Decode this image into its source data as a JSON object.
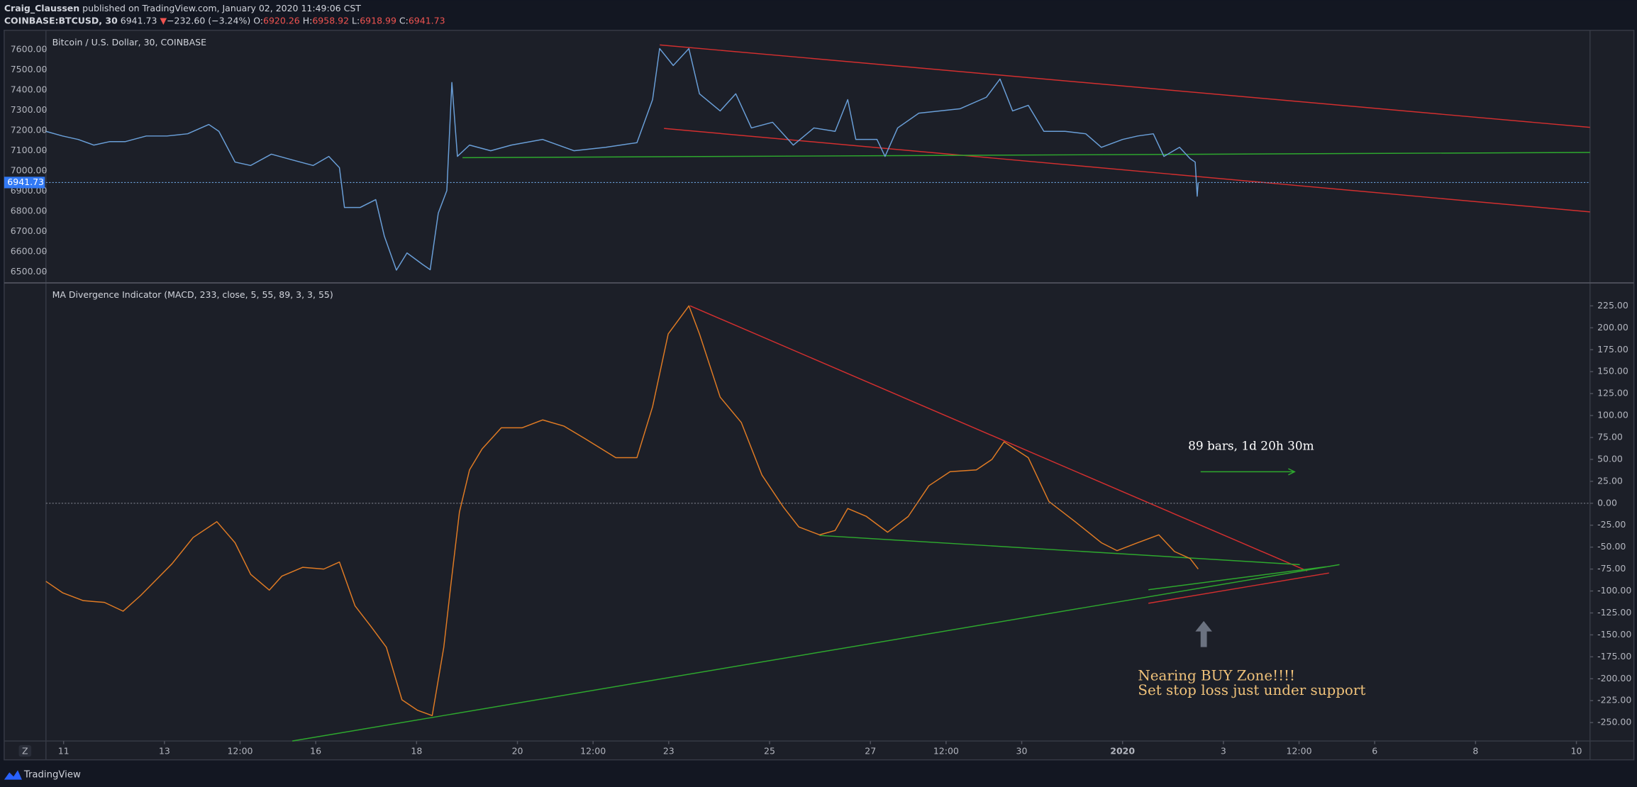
{
  "header": {
    "author": "Craig_Claussen",
    "published": "published on TradingView.com, January 02, 2020 11:49:06 CST",
    "symbol": "COINBASE:BTCUSD, 30",
    "last": "6941.73",
    "arrow": "▼",
    "change": "−232.60 (−3.24%)",
    "open_label": "O:",
    "open": "6920.26",
    "high_label": "H:",
    "high": "6958.92",
    "low_label": "L:",
    "low": "6918.99",
    "close_label": "C:",
    "close": "6941.73"
  },
  "chart_data": [
    {
      "type": "line",
      "title": "Bitcoin / U.S. Dollar, 30, COINBASE",
      "color": "#6a9fd8",
      "x": [
        10.65,
        10.98,
        11.29,
        11.6,
        11.91,
        12.22,
        12.64,
        13.05,
        13.46,
        13.88,
        14.08,
        14.4,
        14.71,
        15.12,
        15.53,
        15.95,
        16.26,
        16.47,
        16.57,
        16.88,
        17.19,
        17.36,
        17.6,
        17.81,
        18.12,
        18.27,
        18.43,
        18.6,
        18.7,
        18.81,
        19.05,
        19.47,
        19.88,
        20.5,
        21.12,
        21.75,
        22.37,
        22.68,
        22.82,
        23.09,
        23.4,
        23.61,
        24.02,
        24.33,
        24.64,
        25.06,
        25.47,
        25.88,
        26.3,
        26.55,
        26.71,
        27.13,
        27.29,
        27.54,
        27.96,
        28.37,
        28.78,
        29.3,
        29.57,
        29.82,
        30.13,
        30.44,
        30.86,
        31.27,
        31.58,
        32.0,
        32.3,
        32.61,
        32.82,
        33.13,
        33.34,
        33.44,
        33.48,
        33.5
      ],
      "values": [
        7195,
        7172,
        7155,
        7127,
        7144,
        7144,
        7172,
        7172,
        7183,
        7229,
        7195,
        7043,
        7026,
        7082,
        7054,
        7026,
        7071,
        7015,
        6818,
        6818,
        6857,
        6677,
        6508,
        6593,
        6536,
        6510,
        6790,
        6902,
        7437,
        7071,
        7127,
        7099,
        7127,
        7155,
        7099,
        7116,
        7139,
        7352,
        7605,
        7521,
        7605,
        7381,
        7296,
        7381,
        7212,
        7240,
        7127,
        7212,
        7195,
        7352,
        7155,
        7155,
        7071,
        7212,
        7285,
        7296,
        7307,
        7364,
        7454,
        7296,
        7324,
        7195,
        7195,
        7183,
        7116,
        7155,
        7172,
        7183,
        7071,
        7116,
        7060,
        7043,
        6874,
        6941.73
      ],
      "last_price": 6941.73,
      "last_price_label": "6941.73",
      "xlim": [
        10.65,
        41.27
      ],
      "ylim": [
        6450,
        7690
      ],
      "yticks": [
        {
          "value": 6500,
          "label": "6500.00"
        },
        {
          "value": 6600,
          "label": "6600.00"
        },
        {
          "value": 6700,
          "label": "6700.00"
        },
        {
          "value": 6800,
          "label": "6800.00"
        },
        {
          "value": 6900,
          "label": "6900.00"
        },
        {
          "value": 7000,
          "label": "7000.00"
        },
        {
          "value": 7100,
          "label": "7100.00"
        },
        {
          "value": 7200,
          "label": "7200.00"
        },
        {
          "value": 7300,
          "label": "7300.00"
        },
        {
          "value": 7400,
          "label": "7400.00"
        },
        {
          "value": 7500,
          "label": "7500.00"
        },
        {
          "value": 7600,
          "label": "7600.00"
        }
      ]
    },
    {
      "type": "line",
      "title": "MA Divergence Indicator (MACD, 233, close, 5, 55, 89, 3, 3, 55)",
      "color": "#e07b24",
      "x": [
        10.65,
        10.98,
        11.39,
        11.81,
        12.18,
        12.53,
        12.84,
        13.15,
        13.57,
        14.04,
        14.4,
        14.71,
        15.08,
        15.33,
        15.74,
        16.16,
        16.47,
        16.78,
        17.09,
        17.4,
        17.71,
        18.02,
        18.31,
        18.54,
        18.68,
        18.85,
        19.05,
        19.3,
        19.68,
        20.09,
        20.5,
        20.92,
        21.33,
        21.95,
        22.37,
        22.68,
        22.99,
        23.4,
        23.61,
        24.02,
        24.44,
        24.85,
        25.27,
        25.58,
        25.99,
        26.3,
        26.55,
        26.92,
        27.34,
        27.75,
        28.16,
        28.58,
        29.1,
        29.41,
        29.65,
        30.13,
        30.54,
        31.06,
        31.58,
        31.89,
        32.3,
        32.72,
        33.03,
        33.34,
        33.5
      ],
      "values": [
        -89,
        -102,
        -111,
        -113,
        -123,
        -105,
        -87,
        -69,
        -39,
        -21,
        -45,
        -81,
        -99,
        -83,
        -73,
        -75,
        -67,
        -117,
        -140,
        -164,
        -224,
        -236,
        -242,
        -164,
        -93,
        -10,
        38,
        62,
        86,
        86,
        95,
        88,
        74,
        52,
        52,
        110,
        193,
        225,
        193,
        121,
        92,
        32,
        -4,
        -27,
        -36,
        -31,
        -6,
        -15,
        -33,
        -15,
        20,
        36,
        38,
        50,
        70,
        52,
        2,
        -21,
        -45,
        -54,
        -45,
        -36,
        -55,
        -63,
        -75
      ],
      "xlim": [
        10.65,
        41.27
      ],
      "ylim": [
        -271,
        250
      ],
      "yticks": [
        {
          "value": -250,
          "label": "-250.00"
        },
        {
          "value": -225,
          "label": "-225.00"
        },
        {
          "value": -200,
          "label": "-200.00"
        },
        {
          "value": -175,
          "label": "-175.00"
        },
        {
          "value": -150,
          "label": "-150.00"
        },
        {
          "value": -125,
          "label": "-125.00"
        },
        {
          "value": -100,
          "label": "-100.00"
        },
        {
          "value": -75,
          "label": "-75.00"
        },
        {
          "value": -50,
          "label": "-50.00"
        },
        {
          "value": -25,
          "label": "-25.00"
        },
        {
          "value": 0,
          "label": "0.00"
        },
        {
          "value": 25,
          "label": "25.00"
        },
        {
          "value": 50,
          "label": "50.00"
        },
        {
          "value": 75,
          "label": "75.00"
        },
        {
          "value": 100,
          "label": "100.00"
        },
        {
          "value": 125,
          "label": "125.00"
        },
        {
          "value": 150,
          "label": "150.00"
        },
        {
          "value": 175,
          "label": "175.00"
        },
        {
          "value": 200,
          "label": "200.00"
        },
        {
          "value": 225,
          "label": "225.00"
        }
      ],
      "xticks": [
        11,
        13,
        {
          "value": 14.5,
          "label": "12:00"
        },
        16,
        18,
        20,
        {
          "value": 21.5,
          "label": "12:00"
        },
        23,
        25,
        27,
        {
          "value": 28.5,
          "label": "12:00"
        },
        30,
        {
          "value": 32,
          "label": "2020"
        },
        {
          "value": 34,
          "label": "3"
        },
        {
          "value": 35.5,
          "label": "12:00"
        },
        {
          "value": 37,
          "label": "6"
        },
        {
          "value": 39,
          "label": "8"
        },
        {
          "value": 41,
          "label": "10"
        }
      ]
    }
  ],
  "annotations": {
    "measure": "89 bars, 1d 20h 30m",
    "note_line1": "Nearing BUY Zone!!!!",
    "note_line2": "Set stop loss just under support"
  },
  "footer": {
    "zoom": "Z",
    "brand": "TradingView"
  }
}
